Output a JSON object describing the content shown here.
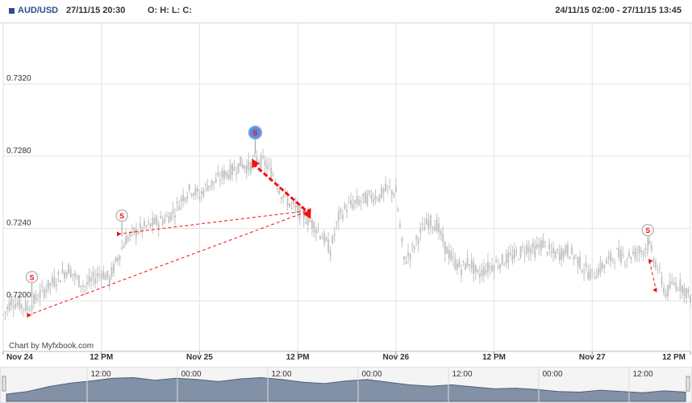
{
  "header": {
    "symbol": "AUD/USD",
    "datetime": "27/11/15 20:30",
    "ohlc_label": "O: H: L: C:",
    "range": "24/11/15 02:00 - 27/11/15 13:45"
  },
  "watermark": "Chart by Myfxbook.com",
  "colors": {
    "candle": "#c4c4c4",
    "trade": "#ee1111",
    "signal_blue": "#5b8fdc",
    "navigator_fill": "#6e7f99",
    "grid": "#e3e3e3"
  },
  "chart_data": {
    "type": "candlestick",
    "title": "",
    "ylim": [
      0.7172,
      0.7354
    ],
    "y_ticks": [
      {
        "value": 0.72,
        "label": "0.7200"
      },
      {
        "value": 0.724,
        "label": "0.7240"
      },
      {
        "value": 0.728,
        "label": "0.7280"
      },
      {
        "value": 0.732,
        "label": "0.7320"
      }
    ],
    "x_range_hours": [
      0,
      84
    ],
    "x_ticks": [
      {
        "hour": 0,
        "label": "Nov 24"
      },
      {
        "hour": 12,
        "label": "12 PM"
      },
      {
        "hour": 24,
        "label": "Nov 25"
      },
      {
        "hour": 36,
        "label": "12 PM"
      },
      {
        "hour": 48,
        "label": "Nov 26"
      },
      {
        "hour": 60,
        "label": "12 PM"
      },
      {
        "hour": 72,
        "label": "Nov 27"
      },
      {
        "hour": 84,
        "label": "12 PM"
      }
    ],
    "price_path": [
      [
        0,
        0.7192
      ],
      [
        1,
        0.72
      ],
      [
        3,
        0.7196
      ],
      [
        5,
        0.7206
      ],
      [
        7,
        0.7214
      ],
      [
        8,
        0.7218
      ],
      [
        9,
        0.7212
      ],
      [
        10,
        0.7208
      ],
      [
        11,
        0.7212
      ],
      [
        12,
        0.7216
      ],
      [
        13,
        0.7212
      ],
      [
        14,
        0.7224
      ],
      [
        15,
        0.7234
      ],
      [
        16,
        0.7238
      ],
      [
        17,
        0.724
      ],
      [
        18,
        0.7242
      ],
      [
        19,
        0.7244
      ],
      [
        20,
        0.7246
      ],
      [
        21,
        0.725
      ],
      [
        22,
        0.7258
      ],
      [
        23,
        0.7262
      ],
      [
        24,
        0.7258
      ],
      [
        25,
        0.7264
      ],
      [
        26,
        0.7266
      ],
      [
        27,
        0.727
      ],
      [
        28,
        0.7272
      ],
      [
        29,
        0.7276
      ],
      [
        30,
        0.7274
      ],
      [
        31,
        0.7278
      ],
      [
        32,
        0.7276
      ],
      [
        33,
        0.727
      ],
      [
        34,
        0.726
      ],
      [
        35,
        0.7254
      ],
      [
        36,
        0.725
      ],
      [
        37,
        0.7246
      ],
      [
        38,
        0.7242
      ],
      [
        39,
        0.7236
      ],
      [
        40,
        0.7228
      ],
      [
        41,
        0.7246
      ],
      [
        42,
        0.7252
      ],
      [
        43,
        0.7254
      ],
      [
        44,
        0.7256
      ],
      [
        45,
        0.7258
      ],
      [
        46,
        0.7258
      ],
      [
        47,
        0.7262
      ],
      [
        48,
        0.726
      ],
      [
        49,
        0.7222
      ],
      [
        50,
        0.7228
      ],
      [
        51,
        0.7238
      ],
      [
        52,
        0.7244
      ],
      [
        53,
        0.7242
      ],
      [
        54,
        0.723
      ],
      [
        55,
        0.7222
      ],
      [
        56,
        0.7218
      ],
      [
        57,
        0.7222
      ],
      [
        58,
        0.7214
      ],
      [
        59,
        0.7218
      ],
      [
        60,
        0.722
      ],
      [
        61,
        0.7222
      ],
      [
        62,
        0.7224
      ],
      [
        63,
        0.7226
      ],
      [
        64,
        0.723
      ],
      [
        65,
        0.7228
      ],
      [
        66,
        0.7232
      ],
      [
        67,
        0.7226
      ],
      [
        68,
        0.7226
      ],
      [
        69,
        0.7228
      ],
      [
        70,
        0.7224
      ],
      [
        71,
        0.7218
      ],
      [
        72,
        0.7214
      ],
      [
        73,
        0.7218
      ],
      [
        74,
        0.7222
      ],
      [
        75,
        0.7226
      ],
      [
        76,
        0.7224
      ],
      [
        77,
        0.7226
      ],
      [
        78,
        0.7228
      ],
      [
        79,
        0.723
      ],
      [
        80,
        0.7218
      ],
      [
        81,
        0.7204
      ],
      [
        82,
        0.721
      ],
      [
        83,
        0.7208
      ],
      [
        84,
        0.7202
      ]
    ],
    "trades": [
      {
        "open": {
          "hour": 3.0,
          "price": 0.7192
        },
        "close": {
          "hour": 37.5,
          "price": 0.725
        },
        "thick": false
      },
      {
        "open": {
          "hour": 14.0,
          "price": 0.7237
        },
        "close": {
          "hour": 37.5,
          "price": 0.725
        },
        "thick": false
      },
      {
        "open": {
          "hour": 30.5,
          "price": 0.7276
        },
        "close": {
          "hour": 37.5,
          "price": 0.7248
        },
        "thick": true
      },
      {
        "open": {
          "hour": 79.0,
          "price": 0.7222
        },
        "close": {
          "hour": 79.8,
          "price": 0.7206
        },
        "thick": false
      }
    ],
    "signals": [
      {
        "hour": 3.5,
        "price": 0.7206,
        "label": "S",
        "style": "white"
      },
      {
        "hour": 14.5,
        "price": 0.724,
        "label": "S",
        "style": "white"
      },
      {
        "hour": 30.8,
        "price": 0.7286,
        "label": "S",
        "style": "blue"
      },
      {
        "hour": 78.8,
        "price": 0.7232,
        "label": "S",
        "style": "white"
      }
    ]
  },
  "navigator": {
    "labels": [
      "12:00",
      "00:00",
      "12:00",
      "00:00",
      "12:00",
      "00:00",
      "12:00"
    ],
    "levels": [
      0.22,
      0.3,
      0.45,
      0.55,
      0.62,
      0.7,
      0.72,
      0.64,
      0.7,
      0.66,
      0.6,
      0.68,
      0.72,
      0.66,
      0.58,
      0.54,
      0.62,
      0.66,
      0.58,
      0.5,
      0.46,
      0.5,
      0.44,
      0.38,
      0.4,
      0.36,
      0.3,
      0.28,
      0.34,
      0.3,
      0.26,
      0.32,
      0.28
    ]
  }
}
